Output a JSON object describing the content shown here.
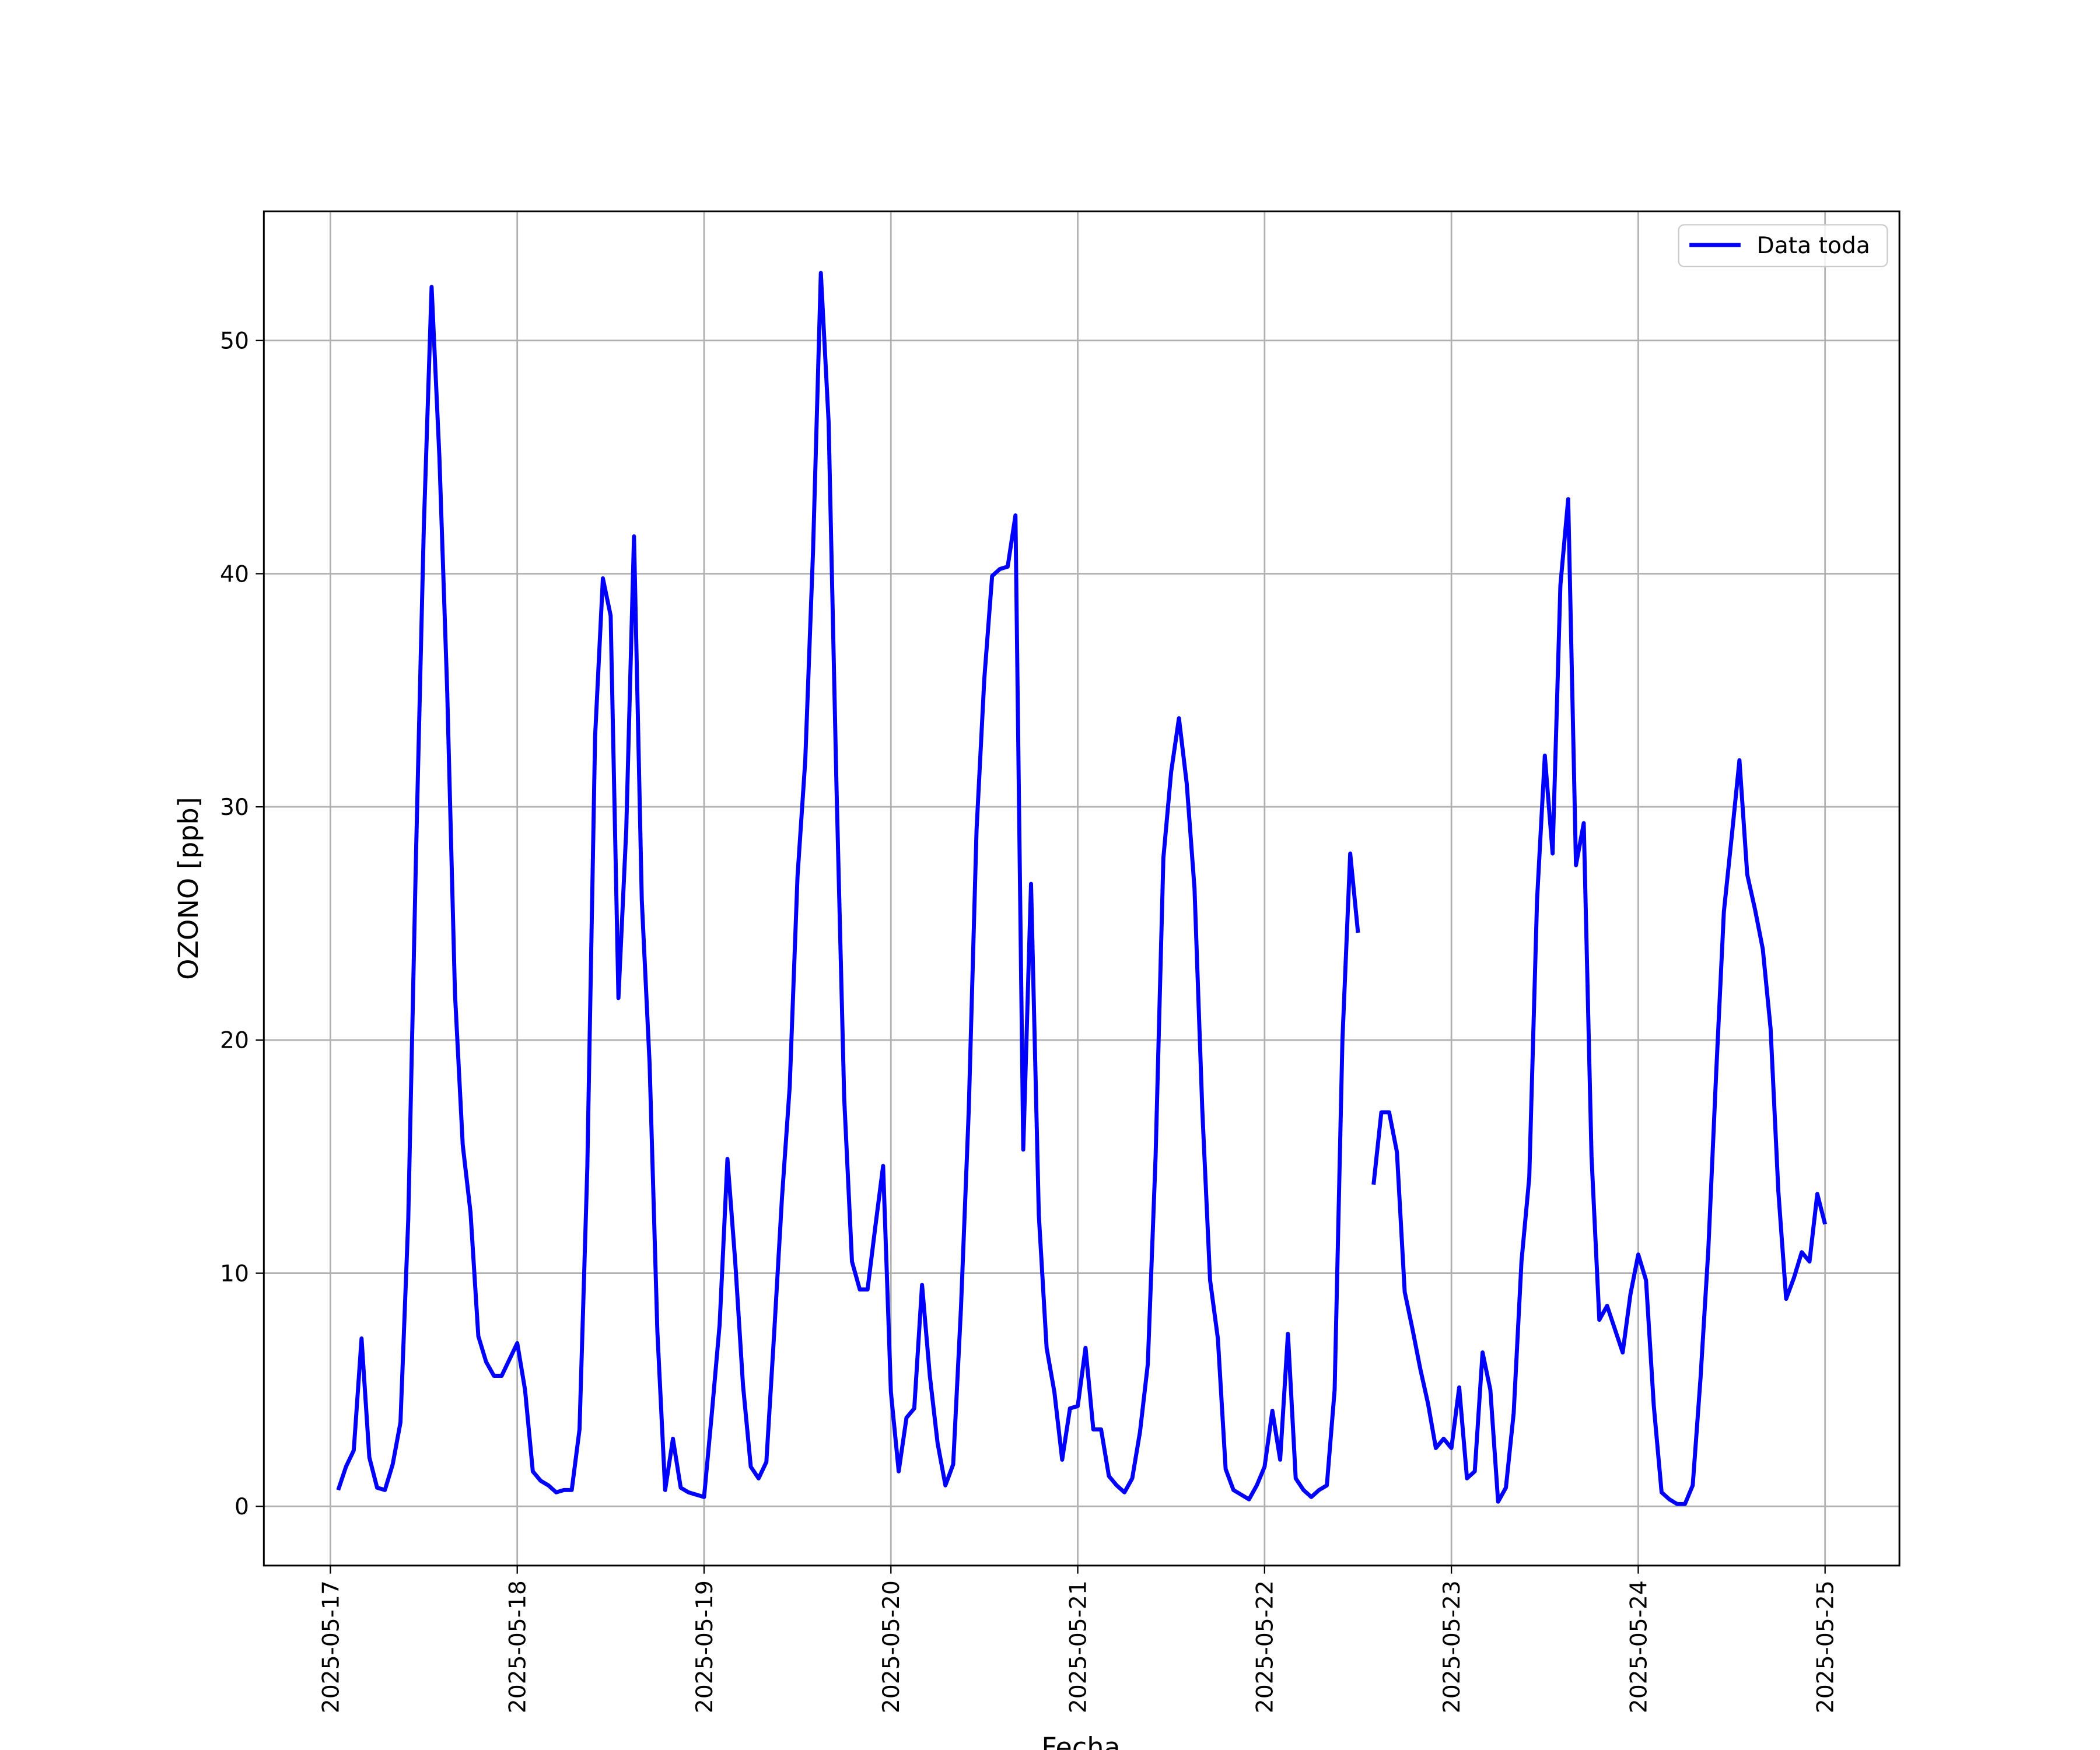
{
  "chart_data": {
    "type": "line",
    "xlabel": "Fecha",
    "ylabel": "OZONO [ppb]",
    "grid": true,
    "legend": "upper right",
    "xlim": [
      "2025-05-16T15:27",
      "2025-05-25T09:33"
    ],
    "xticks": [
      "2025-05-17",
      "2025-05-18",
      "2025-05-19",
      "2025-05-20",
      "2025-05-21",
      "2025-05-22",
      "2025-05-23",
      "2025-05-24",
      "2025-05-25"
    ],
    "ylim": [
      -2.54,
      55.54
    ],
    "yticks": [
      0,
      10,
      20,
      30,
      40,
      50
    ],
    "x": [
      "2025-05-17T01:00",
      "2025-05-17T02:00",
      "2025-05-17T03:00",
      "2025-05-17T04:00",
      "2025-05-17T05:00",
      "2025-05-17T06:00",
      "2025-05-17T07:00",
      "2025-05-17T08:00",
      "2025-05-17T09:00",
      "2025-05-17T10:00",
      "2025-05-17T11:00",
      "2025-05-17T12:00",
      "2025-05-17T13:00",
      "2025-05-17T14:00",
      "2025-05-17T15:00",
      "2025-05-17T16:00",
      "2025-05-17T17:00",
      "2025-05-17T18:00",
      "2025-05-17T19:00",
      "2025-05-17T20:00",
      "2025-05-17T21:00",
      "2025-05-17T22:00",
      "2025-05-17T23:00",
      "2025-05-18T00:00",
      "2025-05-18T01:00",
      "2025-05-18T02:00",
      "2025-05-18T03:00",
      "2025-05-18T04:00",
      "2025-05-18T05:00",
      "2025-05-18T06:00",
      "2025-05-18T07:00",
      "2025-05-18T08:00",
      "2025-05-18T09:00",
      "2025-05-18T10:00",
      "2025-05-18T11:00",
      "2025-05-18T12:00",
      "2025-05-18T13:00",
      "2025-05-18T14:00",
      "2025-05-18T15:00",
      "2025-05-18T16:00",
      "2025-05-18T17:00",
      "2025-05-18T18:00",
      "2025-05-18T19:00",
      "2025-05-18T20:00",
      "2025-05-18T21:00",
      "2025-05-18T22:00",
      "2025-05-18T23:00",
      "2025-05-19T00:00",
      "2025-05-19T01:00",
      "2025-05-19T02:00",
      "2025-05-19T03:00",
      "2025-05-19T04:00",
      "2025-05-19T05:00",
      "2025-05-19T06:00",
      "2025-05-19T07:00",
      "2025-05-19T08:00",
      "2025-05-19T09:00",
      "2025-05-19T10:00",
      "2025-05-19T11:00",
      "2025-05-19T12:00",
      "2025-05-19T13:00",
      "2025-05-19T14:00",
      "2025-05-19T15:00",
      "2025-05-19T16:00",
      "2025-05-19T17:00",
      "2025-05-19T18:00",
      "2025-05-19T19:00",
      "2025-05-19T20:00",
      "2025-05-19T21:00",
      "2025-05-19T22:00",
      "2025-05-19T23:00",
      "2025-05-20T00:00",
      "2025-05-20T01:00",
      "2025-05-20T02:00",
      "2025-05-20T03:00",
      "2025-05-20T04:00",
      "2025-05-20T05:00",
      "2025-05-20T06:00",
      "2025-05-20T07:00",
      "2025-05-20T08:00",
      "2025-05-20T09:00",
      "2025-05-20T10:00",
      "2025-05-20T11:00",
      "2025-05-20T12:00",
      "2025-05-20T13:00",
      "2025-05-20T14:00",
      "2025-05-20T15:00",
      "2025-05-20T16:00",
      "2025-05-20T17:00",
      "2025-05-20T18:00",
      "2025-05-20T19:00",
      "2025-05-20T20:00",
      "2025-05-20T21:00",
      "2025-05-20T22:00",
      "2025-05-20T23:00",
      "2025-05-21T00:00",
      "2025-05-21T01:00",
      "2025-05-21T02:00",
      "2025-05-21T03:00",
      "2025-05-21T04:00",
      "2025-05-21T05:00",
      "2025-05-21T06:00",
      "2025-05-21T07:00",
      "2025-05-21T08:00",
      "2025-05-21T09:00",
      "2025-05-21T10:00",
      "2025-05-21T11:00",
      "2025-05-21T12:00",
      "2025-05-21T13:00",
      "2025-05-21T14:00",
      "2025-05-21T15:00",
      "2025-05-21T16:00",
      "2025-05-21T17:00",
      "2025-05-21T18:00",
      "2025-05-21T19:00",
      "2025-05-21T20:00",
      "2025-05-21T21:00",
      "2025-05-21T22:00",
      "2025-05-21T23:00",
      "2025-05-22T00:00",
      "2025-05-22T01:00",
      "2025-05-22T02:00",
      "2025-05-22T03:00",
      "2025-05-22T04:00",
      "2025-05-22T05:00",
      "2025-05-22T06:00",
      "2025-05-22T07:00",
      "2025-05-22T08:00",
      "2025-05-22T09:00",
      "2025-05-22T10:00",
      "2025-05-22T11:00",
      "2025-05-22T12:00",
      "2025-05-22T13:00",
      "2025-05-22T14:00",
      "2025-05-22T15:00",
      "2025-05-22T16:00",
      "2025-05-22T17:00",
      "2025-05-22T18:00",
      "2025-05-22T19:00",
      "2025-05-22T20:00",
      "2025-05-22T21:00",
      "2025-05-22T22:00",
      "2025-05-22T23:00",
      "2025-05-23T00:00",
      "2025-05-23T01:00",
      "2025-05-23T02:00",
      "2025-05-23T03:00",
      "2025-05-23T04:00",
      "2025-05-23T05:00",
      "2025-05-23T06:00",
      "2025-05-23T07:00",
      "2025-05-23T08:00",
      "2025-05-23T09:00",
      "2025-05-23T10:00",
      "2025-05-23T11:00",
      "2025-05-23T12:00",
      "2025-05-23T13:00",
      "2025-05-23T14:00",
      "2025-05-23T15:00",
      "2025-05-23T16:00",
      "2025-05-23T17:00",
      "2025-05-23T18:00",
      "2025-05-23T19:00",
      "2025-05-23T20:00",
      "2025-05-23T21:00",
      "2025-05-23T22:00",
      "2025-05-23T23:00",
      "2025-05-24T00:00",
      "2025-05-24T01:00",
      "2025-05-24T02:00",
      "2025-05-24T03:00",
      "2025-05-24T04:00",
      "2025-05-24T05:00",
      "2025-05-24T06:00",
      "2025-05-24T07:00",
      "2025-05-24T08:00",
      "2025-05-24T09:00",
      "2025-05-24T10:00",
      "2025-05-24T11:00",
      "2025-05-24T12:00",
      "2025-05-24T13:00",
      "2025-05-24T14:00",
      "2025-05-24T15:00",
      "2025-05-24T16:00",
      "2025-05-24T17:00",
      "2025-05-24T18:00",
      "2025-05-24T19:00",
      "2025-05-24T20:00",
      "2025-05-24T21:00",
      "2025-05-24T22:00",
      "2025-05-24T23:00",
      "2025-05-25T00:00"
    ],
    "series": [
      {
        "name": "Data toda",
        "color": "#0000ff",
        "values": [
          0.7,
          1.7,
          2.4,
          7.2,
          2.1,
          0.8,
          0.7,
          1.8,
          3.6,
          12.3,
          28,
          42,
          52.3,
          45,
          35,
          22,
          15.5,
          12.6,
          7.3,
          6.2,
          5.6,
          5.6,
          6.3,
          7.0,
          5.0,
          1.5,
          1.1,
          0.9,
          0.6,
          0.7,
          0.7,
          3.3,
          14.5,
          33,
          39.8,
          38.2,
          21.8,
          29,
          41.6,
          26,
          19,
          7.5,
          0.7,
          2.9,
          0.8,
          0.6,
          0.5,
          0.4,
          4,
          7.8,
          14.9,
          10.5,
          5.2,
          1.7,
          1.2,
          1.9,
          7.4,
          13.2,
          18,
          27,
          32,
          41,
          52.9,
          46.5,
          31,
          17.5,
          10.5,
          9.3,
          9.3,
          12,
          14.6,
          4.9,
          1.5,
          3.8,
          4.2,
          9.5,
          5.6,
          2.7,
          0.9,
          1.8,
          8.5,
          17,
          29,
          35.5,
          39.9,
          40.2,
          40.3,
          42.5,
          15.3,
          26.7,
          12.5,
          6.8,
          4.9,
          2.0,
          4.2,
          4.3,
          6.8,
          3.3,
          3.3,
          1.3,
          0.9,
          0.6,
          1.2,
          3.2,
          6.1,
          15,
          27.8,
          31.5,
          33.8,
          31,
          26.5,
          17,
          9.7,
          7.2,
          1.6,
          0.7,
          0.5,
          0.3,
          0.9,
          1.7,
          4.1,
          2.0,
          7.4,
          1.2,
          0.7,
          0.4,
          0.7,
          0.9,
          5,
          20,
          28,
          24.6,
          null,
          13.8,
          16.9,
          16.9,
          15.2,
          9.2,
          7.6,
          5.9,
          4.4,
          2.5,
          2.9,
          2.5,
          5.1,
          1.2,
          1.5,
          6.6,
          5.0,
          0.2,
          0.8,
          4.0,
          10.5,
          14.1,
          26,
          32.2,
          28,
          39.5,
          43.2,
          27.5,
          29.3,
          15,
          8.0,
          8.6,
          7.6,
          6.6,
          9.1,
          10.8,
          9.7,
          4.3,
          0.6,
          0.3,
          0.1,
          0.1,
          0.9,
          5.5,
          11,
          18.5,
          25.5,
          28.7,
          32,
          27.1,
          25.6,
          23.9,
          20.5,
          13.5,
          8.9,
          9.8,
          10.9,
          10.5,
          13.4,
          12.1
        ]
      }
    ]
  }
}
